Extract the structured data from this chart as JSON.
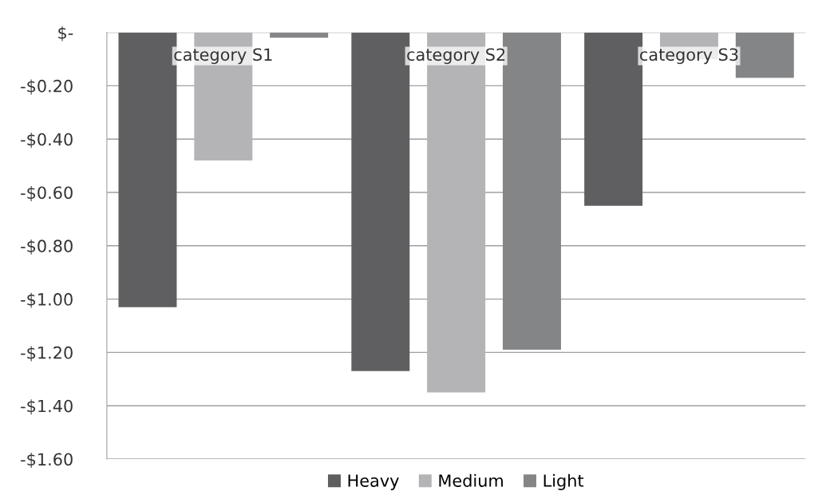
{
  "chart_data": {
    "type": "bar",
    "categories": [
      "category S1",
      "category S2",
      "category S3"
    ],
    "series": [
      {
        "name": "Heavy",
        "color": "#5f5f61",
        "values": [
          -1.03,
          -1.27,
          -0.65
        ]
      },
      {
        "name": "Medium",
        "color": "#b4b4b6",
        "values": [
          -0.48,
          -1.35,
          -0.1
        ]
      },
      {
        "name": "Light",
        "color": "#848587",
        "values": [
          -0.02,
          -1.19,
          -0.17
        ]
      }
    ],
    "ylim": [
      -1.6,
      0
    ],
    "yticks": [
      {
        "value": 0,
        "label": "$-"
      },
      {
        "value": -0.2,
        "label": "-$0.20"
      },
      {
        "value": -0.4,
        "label": "-$0.40"
      },
      {
        "value": -0.6,
        "label": "-$0.60"
      },
      {
        "value": -0.8,
        "label": "-$0.80"
      },
      {
        "value": -1.0,
        "label": "-$1.00"
      },
      {
        "value": -1.2,
        "label": "-$1.20"
      },
      {
        "value": -1.4,
        "label": "-$1.40"
      },
      {
        "value": -1.6,
        "label": "-$1.60"
      }
    ],
    "grid": "y",
    "legend": "bottom"
  }
}
